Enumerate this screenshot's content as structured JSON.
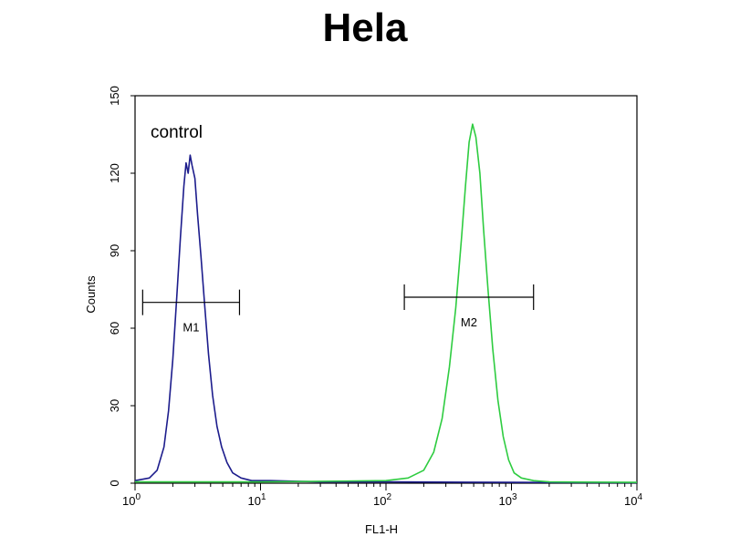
{
  "chart_data": {
    "type": "line",
    "title": "Hela",
    "xlabel": "FL1-H",
    "ylabel": "Counts",
    "xscale": "log",
    "xlim": [
      1,
      10000
    ],
    "ylim": [
      0,
      150
    ],
    "x_ticks": [
      {
        "value": 1,
        "base": "10",
        "exp": "0"
      },
      {
        "value": 10,
        "base": "10",
        "exp": "1"
      },
      {
        "value": 100,
        "base": "10",
        "exp": "2"
      },
      {
        "value": 1000,
        "base": "10",
        "exp": "3"
      },
      {
        "value": 10000,
        "base": "10",
        "exp": "4"
      }
    ],
    "y_ticks": [
      "0",
      "30",
      "60",
      "90",
      "120",
      "150"
    ],
    "annotation": "control",
    "series": [
      {
        "color": "#1c1c8c",
        "points": [
          [
            1.0,
            1
          ],
          [
            1.3,
            2
          ],
          [
            1.5,
            5
          ],
          [
            1.7,
            14
          ],
          [
            1.85,
            28
          ],
          [
            2.0,
            48
          ],
          [
            2.15,
            72
          ],
          [
            2.3,
            95
          ],
          [
            2.45,
            115
          ],
          [
            2.55,
            124
          ],
          [
            2.65,
            120
          ],
          [
            2.75,
            127
          ],
          [
            2.85,
            123
          ],
          [
            3.0,
            118
          ],
          [
            3.15,
            104
          ],
          [
            3.35,
            88
          ],
          [
            3.6,
            68
          ],
          [
            3.85,
            50
          ],
          [
            4.15,
            34
          ],
          [
            4.5,
            22
          ],
          [
            4.9,
            14
          ],
          [
            5.4,
            8
          ],
          [
            6.0,
            4
          ],
          [
            7.0,
            2
          ],
          [
            8.5,
            1
          ],
          [
            12,
            1
          ],
          [
            30,
            0.5
          ],
          [
            100,
            0.5
          ],
          [
            1000,
            0.3
          ],
          [
            10000,
            0.2
          ]
        ]
      },
      {
        "color": "#2ecc40",
        "points": [
          [
            1.0,
            0.5
          ],
          [
            10,
            0.5
          ],
          [
            100,
            1
          ],
          [
            150,
            2
          ],
          [
            200,
            5
          ],
          [
            240,
            12
          ],
          [
            280,
            25
          ],
          [
            320,
            45
          ],
          [
            360,
            68
          ],
          [
            400,
            95
          ],
          [
            430,
            115
          ],
          [
            460,
            132
          ],
          [
            490,
            139
          ],
          [
            520,
            134
          ],
          [
            560,
            120
          ],
          [
            600,
            98
          ],
          [
            650,
            75
          ],
          [
            710,
            52
          ],
          [
            780,
            32
          ],
          [
            860,
            18
          ],
          [
            950,
            9
          ],
          [
            1050,
            4
          ],
          [
            1200,
            2
          ],
          [
            1500,
            1
          ],
          [
            2000,
            0.5
          ],
          [
            10000,
            0.3
          ]
        ]
      }
    ],
    "markers": [
      {
        "label": "M1",
        "x_range": [
          1.15,
          6.8
        ],
        "y": 70
      },
      {
        "label": "M2",
        "x_range": [
          140,
          1500
        ],
        "y": 72
      }
    ]
  }
}
